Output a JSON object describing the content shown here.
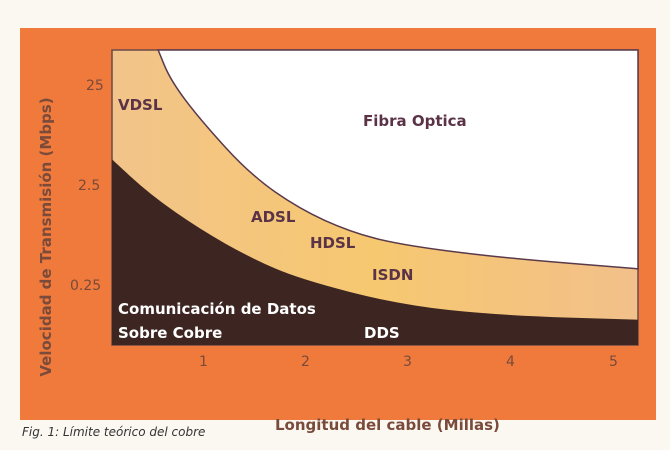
{
  "chart_data": {
    "type": "area",
    "xlabel": "Longitud del cable (Millas)",
    "ylabel": "Velocidad de Transmisión (Mbps)",
    "x_ticks": [
      "1",
      "2",
      "3",
      "4",
      "5"
    ],
    "y_ticks": [
      "25",
      "2.5",
      "0.25"
    ],
    "y_scale": "log",
    "xlim": [
      0.11,
      5.24
    ],
    "ylim": [
      0.066,
      58
    ],
    "grid": false,
    "upper_boundary": {
      "x": [
        0.56,
        0.68,
        0.97,
        1.46,
        1.94,
        2.43,
        2.92,
        3.9,
        5.24
      ],
      "y": [
        58,
        29,
        11.7,
        3.3,
        1.5,
        0.89,
        0.66,
        0.49,
        0.38
      ]
    },
    "lower_boundary": {
      "x": [
        0.11,
        0.48,
        0.97,
        1.46,
        1.94,
        2.92,
        3.9,
        5.24
      ],
      "y": [
        4.7,
        2.1,
        0.94,
        0.49,
        0.3,
        0.166,
        0.13,
        0.118
      ]
    },
    "regions": [
      {
        "label": "Fibra Optica",
        "color": "#ffffff"
      },
      {
        "labels": [
          "VDSL",
          "ADSL",
          "HDSL",
          "ISDN"
        ],
        "color": "#f2c48a"
      },
      {
        "labels": [
          "Comunicación de Datos",
          "Sobre Cobre",
          "DDS"
        ],
        "color": "#3d2622"
      }
    ]
  },
  "colors": {
    "background": "#ef7a3c",
    "text": "#7a4a3a"
  },
  "caption": "Fig. 1: Límite teórico del cobre"
}
